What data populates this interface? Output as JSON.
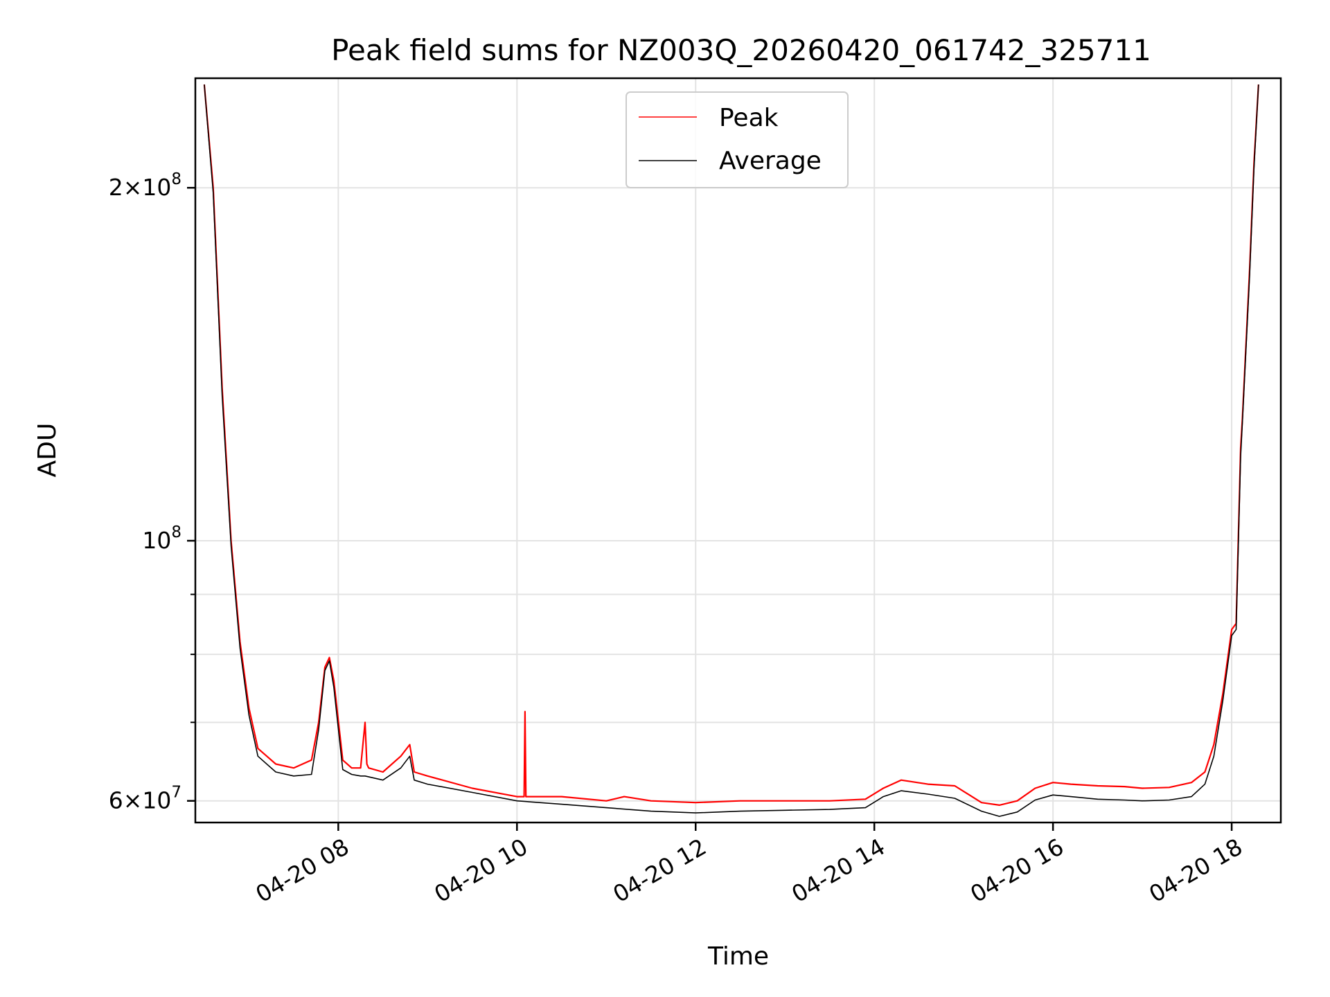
{
  "chart_data": {
    "type": "line",
    "title": "Peak field sums for NZ003Q_20260420_061742_325711",
    "xlabel": "Time",
    "ylabel": "ADU",
    "yscale": "log",
    "grid": true,
    "legend_position": "top-center",
    "xlim": [
      6.4,
      18.55
    ],
    "ylim": [
      57500000,
      248000000
    ],
    "x_ticks": [
      {
        "value": 8,
        "label": "04-20 08"
      },
      {
        "value": 10,
        "label": "04-20 10"
      },
      {
        "value": 12,
        "label": "04-20 12"
      },
      {
        "value": 14,
        "label": "04-20 14"
      },
      {
        "value": 16,
        "label": "04-20 16"
      },
      {
        "value": 18,
        "label": "04-20 18"
      }
    ],
    "y_major_ticks": [
      {
        "value": 60000000,
        "base": "6×10",
        "exp": "7"
      },
      {
        "value": 100000000,
        "base": "10",
        "exp": "8"
      },
      {
        "value": 200000000,
        "base": "2×10",
        "exp": "8"
      }
    ],
    "y_minor_ticks": [
      70000000,
      80000000,
      90000000
    ],
    "colors": {
      "peak": "#ff0000",
      "average": "#000000"
    },
    "series": [
      {
        "name": "Peak",
        "color": "#ff0000",
        "x": [
          6.5,
          6.6,
          6.7,
          6.8,
          6.9,
          7.0,
          7.1,
          7.3,
          7.5,
          7.7,
          7.78,
          7.85,
          7.9,
          7.95,
          8.05,
          8.15,
          8.25,
          8.3,
          8.32,
          8.34,
          8.5,
          8.7,
          8.8,
          8.85,
          9.0,
          9.5,
          10.0,
          10.08,
          10.09,
          10.1,
          10.5,
          11.0,
          11.2,
          11.5,
          12.0,
          12.5,
          13.0,
          13.5,
          13.9,
          14.1,
          14.3,
          14.6,
          14.9,
          15.2,
          15.4,
          15.6,
          15.8,
          16.0,
          16.2,
          16.5,
          16.8,
          17.0,
          17.3,
          17.55,
          17.7,
          17.8,
          17.9,
          18.0,
          18.05,
          18.1,
          18.12,
          18.2,
          18.25,
          18.3
        ],
        "y": [
          245000000,
          200000000,
          135000000,
          100000000,
          82000000,
          72000000,
          66500000,
          64500000,
          64000000,
          65000000,
          70000000,
          78000000,
          79500000,
          76000000,
          65000000,
          64000000,
          64000000,
          70000000,
          64500000,
          64000000,
          63500000,
          65500000,
          67000000,
          63500000,
          63000000,
          61500000,
          60500000,
          60500000,
          71500000,
          60500000,
          60500000,
          60000000,
          60500000,
          60000000,
          59800000,
          60000000,
          60000000,
          60000000,
          60200000,
          61500000,
          62500000,
          62000000,
          61800000,
          59800000,
          59500000,
          60000000,
          61500000,
          62200000,
          62000000,
          61800000,
          61700000,
          61500000,
          61600000,
          62200000,
          63500000,
          67000000,
          74000000,
          84000000,
          85000000,
          120000000,
          127000000,
          170000000,
          210000000,
          245000000
        ]
      },
      {
        "name": "Average",
        "color": "#000000",
        "x": [
          6.5,
          6.6,
          6.7,
          6.8,
          6.9,
          7.0,
          7.1,
          7.3,
          7.5,
          7.7,
          7.78,
          7.85,
          7.9,
          7.95,
          8.05,
          8.15,
          8.25,
          8.3,
          8.5,
          8.7,
          8.8,
          8.85,
          9.0,
          9.5,
          10.0,
          10.5,
          11.0,
          11.5,
          12.0,
          12.5,
          13.0,
          13.5,
          13.9,
          14.1,
          14.3,
          14.6,
          14.9,
          15.2,
          15.4,
          15.6,
          15.8,
          16.0,
          16.2,
          16.5,
          16.8,
          17.0,
          17.3,
          17.55,
          17.7,
          17.8,
          17.9,
          18.0,
          18.05,
          18.1,
          18.12,
          18.2,
          18.25,
          18.3
        ],
        "y": [
          245000000,
          198000000,
          133000000,
          99000000,
          81000000,
          71000000,
          65500000,
          63500000,
          63000000,
          63200000,
          69000000,
          77500000,
          79000000,
          75000000,
          63800000,
          63200000,
          63000000,
          63000000,
          62500000,
          64000000,
          65500000,
          62500000,
          62000000,
          61000000,
          60000000,
          59600000,
          59200000,
          58800000,
          58600000,
          58800000,
          58900000,
          59000000,
          59200000,
          60500000,
          61200000,
          60800000,
          60300000,
          58800000,
          58200000,
          58700000,
          60100000,
          60700000,
          60500000,
          60200000,
          60100000,
          60000000,
          60100000,
          60500000,
          62000000,
          65500000,
          73000000,
          83000000,
          84000000,
          118000000,
          126000000,
          168000000,
          208000000,
          245000000
        ]
      }
    ],
    "annotations": []
  }
}
